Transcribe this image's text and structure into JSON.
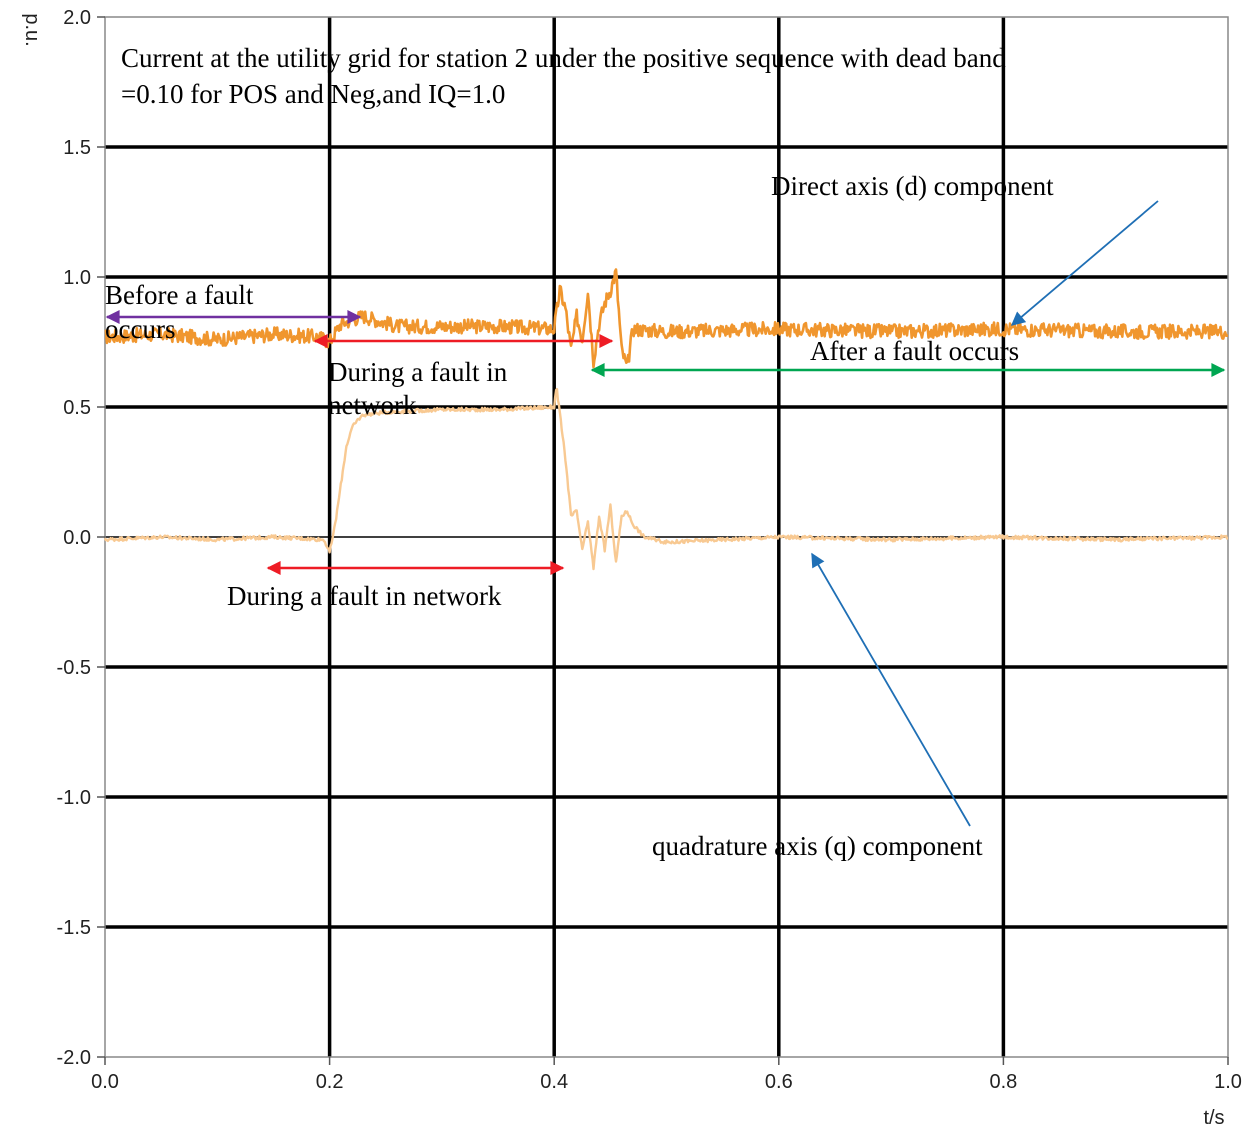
{
  "chart_data": {
    "type": "line",
    "xlabel": "t/s",
    "ylabel": "p.u.",
    "xlim": [
      0.0,
      1.0
    ],
    "ylim": [
      -2.0,
      2.0
    ],
    "x_ticks": [
      0.0,
      0.2,
      0.4,
      0.6,
      0.8,
      1.0
    ],
    "x_tick_labels": [
      "0.0",
      "0.2",
      "0.4",
      "0.6",
      "0.8",
      "1.0"
    ],
    "y_ticks": [
      -2.0,
      -1.5,
      -1.0,
      -0.5,
      0.0,
      0.5,
      1.0,
      1.5,
      2.0
    ],
    "y_tick_labels": [
      "-2.0",
      "-1.5",
      "-1.0",
      "-0.5",
      "0.0",
      "0.5",
      "1.0",
      "1.5",
      "2.0"
    ],
    "grid": true,
    "series": [
      {
        "color": "#F0962E",
        "x": [
          0.0,
          0.05,
          0.1,
          0.15,
          0.19,
          0.2,
          0.21,
          0.23,
          0.26,
          0.3,
          0.35,
          0.4,
          0.405,
          0.41,
          0.415,
          0.42,
          0.425,
          0.43,
          0.435,
          0.44,
          0.445,
          0.45,
          0.455,
          0.46,
          0.465,
          0.47,
          0.5,
          0.6,
          0.7,
          0.8,
          0.9,
          1.0
        ],
        "y": [
          0.77,
          0.78,
          0.76,
          0.78,
          0.77,
          0.75,
          0.82,
          0.85,
          0.81,
          0.81,
          0.81,
          0.8,
          0.95,
          0.88,
          0.72,
          0.85,
          0.76,
          0.95,
          0.68,
          0.82,
          0.9,
          0.95,
          1.02,
          0.72,
          0.65,
          0.8,
          0.79,
          0.8,
          0.79,
          0.8,
          0.79,
          0.79
        ]
      },
      {
        "color": "#F8C992",
        "x": [
          0.0,
          0.05,
          0.1,
          0.15,
          0.195,
          0.2,
          0.205,
          0.21,
          0.215,
          0.22,
          0.225,
          0.23,
          0.25,
          0.3,
          0.35,
          0.4,
          0.402,
          0.41,
          0.415,
          0.42,
          0.425,
          0.43,
          0.435,
          0.44,
          0.445,
          0.45,
          0.455,
          0.46,
          0.465,
          0.47,
          0.48,
          0.5,
          0.6,
          0.7,
          0.8,
          0.9,
          1.0
        ],
        "y": [
          -0.01,
          0.0,
          -0.01,
          0.0,
          -0.01,
          -0.06,
          0.05,
          0.2,
          0.35,
          0.42,
          0.45,
          0.47,
          0.48,
          0.49,
          0.49,
          0.5,
          0.58,
          0.3,
          0.08,
          0.1,
          -0.05,
          0.06,
          -0.12,
          0.08,
          -0.05,
          0.12,
          -0.1,
          0.08,
          0.1,
          0.05,
          0.0,
          -0.02,
          0.0,
          -0.01,
          0.0,
          -0.01,
          0.0
        ]
      }
    ],
    "annotations": {
      "title_line1": "Current  at the utility grid for station 2 under the positive sequence with dead band",
      "title_line2": "=0.10  for POS and Neg,and IQ=1.0",
      "before_line1": "Before   a   fault",
      "before_line2": "occurs",
      "during_upper_line1": "During   a   fault   in",
      "during_upper_line2": "network",
      "during_lower": "During a fault in network",
      "after": "After a fault occurs",
      "direct_axis": "Direct axis (d) component",
      "quadrature_axis": "quadrature axis (q) component"
    },
    "arrow_colors": {
      "before": "#7030A0",
      "during": "#EE1C25",
      "after": "#00A651",
      "pointer": "#1F6FB5"
    }
  }
}
